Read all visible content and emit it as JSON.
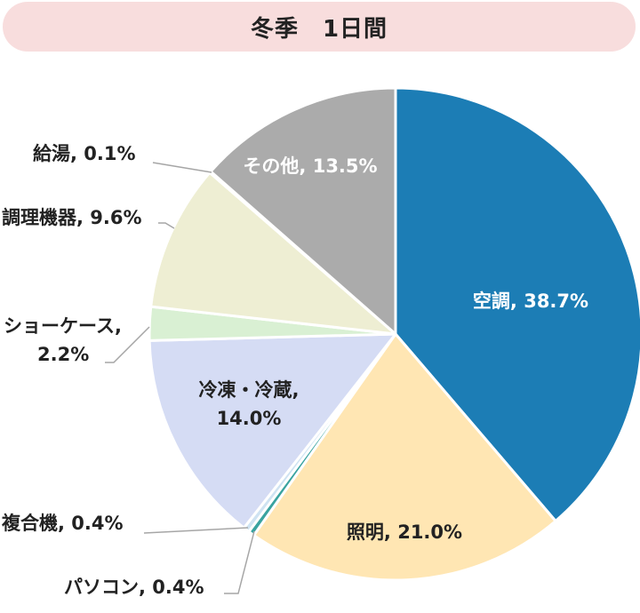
{
  "chart_data": {
    "type": "pie",
    "title": "冬季　1日間",
    "unit": "%",
    "slices": [
      {
        "name": "空調",
        "value": 38.7,
        "color": "#1c7db5",
        "label_lines": [
          "空調, 38.7%"
        ],
        "label_color": "#ffffff"
      },
      {
        "name": "照明",
        "value": 21.0,
        "color": "#ffe6b3",
        "label_lines": [
          "照明, 21.0%"
        ],
        "label_color": "#222222"
      },
      {
        "name": "パソコン",
        "value": 0.4,
        "color": "#3aa3a0",
        "label_lines": [
          "パソコン, 0.4%"
        ],
        "label_color": "#222222"
      },
      {
        "name": "複合機",
        "value": 0.4,
        "color": "#cfe3f2",
        "label_lines": [
          "複合機, 0.4%"
        ],
        "label_color": "#222222"
      },
      {
        "name": "冷凍・冷蔵",
        "value": 14.0,
        "color": "#d5dcf4",
        "label_lines": [
          "冷凍・冷蔵,",
          "14.0%"
        ],
        "label_color": "#222222"
      },
      {
        "name": "ショーケース",
        "value": 2.2,
        "color": "#d9f0d3",
        "label_lines": [
          "ショーケース,",
          "2.2%"
        ],
        "label_color": "#222222"
      },
      {
        "name": "調理機器",
        "value": 9.6,
        "color": "#eeeed3",
        "label_lines": [
          "調理機器, 9.6%"
        ],
        "label_color": "#222222"
      },
      {
        "name": "給湯",
        "value": 0.1,
        "color": "#c8c8c8",
        "label_lines": [
          "給湯, 0.1%"
        ],
        "label_color": "#222222"
      },
      {
        "name": "その他",
        "value": 13.5,
        "color": "#ababab",
        "label_lines": [
          "その他, 13.5%"
        ],
        "label_color": "#ffffff"
      }
    ]
  }
}
